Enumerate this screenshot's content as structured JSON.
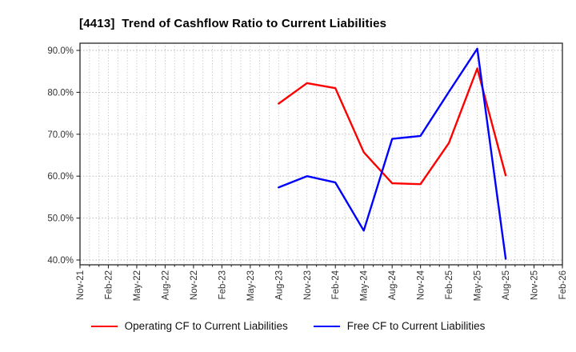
{
  "chart_data": {
    "type": "line",
    "title": "[4413]  Trend of Cashflow Ratio to Current Liabilities",
    "x_tick_labels": [
      "Nov-21",
      "Feb-22",
      "May-22",
      "Aug-22",
      "Nov-22",
      "Feb-23",
      "May-23",
      "Aug-23",
      "Nov-23",
      "Feb-24",
      "May-24",
      "Aug-24",
      "Nov-24",
      "Feb-25",
      "May-25",
      "Aug-25",
      "Nov-25",
      "Feb-26"
    ],
    "y_ticks": [
      {
        "value": 90,
        "label": "90.0%"
      },
      {
        "value": 80,
        "label": "80.0%"
      },
      {
        "value": 70,
        "label": "70.0%"
      },
      {
        "value": 60,
        "label": "60.0%"
      },
      {
        "value": 50,
        "label": "50.0%"
      },
      {
        "value": 40,
        "label": "40.0%"
      }
    ],
    "ylim": [
      38.9,
      91.7
    ],
    "grid": {
      "style": "dotted",
      "vertical": "monthly",
      "horizontal": "every-10-percent"
    },
    "series": [
      {
        "name": "Operating CF to Current Liabilities",
        "color": "#ff0000",
        "x": [
          "Aug-23",
          "Nov-23",
          "Feb-24",
          "May-24",
          "Aug-24",
          "Nov-24",
          "Feb-25",
          "May-25",
          "Aug-25"
        ],
        "values": [
          77.3,
          82.2,
          81.0,
          65.7,
          58.3,
          58.1,
          67.9,
          85.7,
          60.2
        ]
      },
      {
        "name": "Free CF to Current Liabilities",
        "color": "#0000ff",
        "x": [
          "Aug-23",
          "Nov-23",
          "Feb-24",
          "May-24",
          "Aug-24",
          "Nov-24",
          "Feb-25",
          "May-25",
          "Aug-25"
        ],
        "values": [
          57.3,
          60.0,
          58.5,
          47.0,
          68.9,
          69.6,
          80.1,
          90.4,
          40.3
        ]
      }
    ],
    "colors": {
      "grid": "#b3b3b3",
      "spine": "#262626",
      "tick_text": "#333333",
      "title_text": "#000000",
      "background": "#ffffff"
    },
    "legend_position": "bottom"
  },
  "legend": {
    "items": [
      {
        "label": "Operating CF to Current Liabilities",
        "color": "#ff0000"
      },
      {
        "label": "Free CF to Current Liabilities",
        "color": "#0000ff"
      }
    ]
  }
}
